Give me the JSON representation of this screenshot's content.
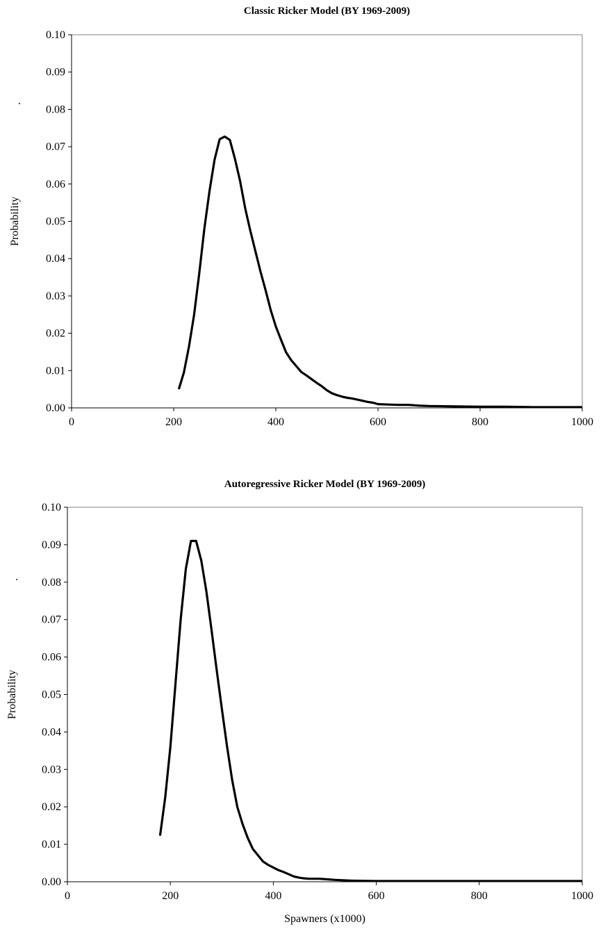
{
  "chart_data": [
    {
      "type": "line",
      "title": "Classic Ricker Model (BY 1969-2009)",
      "xlabel": "",
      "ylabel": "Probability",
      "ylabel_mark": ".",
      "xlim": [
        0,
        1000
      ],
      "ylim": [
        0,
        0.1
      ],
      "xticks": [
        0,
        200,
        400,
        600,
        800,
        1000
      ],
      "yticks": [
        0.0,
        0.01,
        0.02,
        0.03,
        0.04,
        0.05,
        0.06,
        0.07,
        0.08,
        0.09,
        0.1
      ],
      "ytick_labels": [
        "0.00",
        "0.01",
        "0.02",
        "0.03",
        "0.04",
        "0.05",
        "0.06",
        "0.07",
        "0.08",
        "0.09",
        "0.10"
      ],
      "grid": false,
      "legend": "none",
      "line_color": "#000000",
      "series": [
        {
          "x": [
            210,
            220,
            230,
            240,
            250,
            260,
            270,
            280,
            290,
            300,
            310,
            320,
            330,
            340,
            350,
            360,
            370,
            380,
            390,
            400,
            410,
            420,
            430,
            440,
            450,
            460,
            470,
            480,
            490,
            500,
            510,
            520,
            530,
            540,
            550,
            560,
            570,
            580,
            590,
            600,
            620,
            640,
            660,
            680,
            700,
            750,
            800,
            850,
            900,
            950,
            1000
          ],
          "values": [
            0.005,
            0.0095,
            0.0165,
            0.025,
            0.036,
            0.048,
            0.058,
            0.0665,
            0.072,
            0.0727,
            0.0718,
            0.0667,
            0.0608,
            0.0535,
            0.0475,
            0.042,
            0.0365,
            0.0315,
            0.0262,
            0.0218,
            0.0183,
            0.0149,
            0.0128,
            0.0112,
            0.0096,
            0.0087,
            0.0077,
            0.0067,
            0.0058,
            0.0047,
            0.0039,
            0.0034,
            0.003,
            0.0027,
            0.0025,
            0.0022,
            0.0019,
            0.0016,
            0.0014,
            0.001,
            0.0009,
            0.0008,
            0.0008,
            0.0006,
            0.0005,
            0.0004,
            0.0003,
            0.0003,
            0.0002,
            0.0002,
            0.0002
          ]
        }
      ]
    },
    {
      "type": "line",
      "title": "Autoregressive Ricker Model (BY 1969-2009)",
      "xlabel": "Spawners (x1000)",
      "ylabel": "Probability",
      "ylabel_mark": ".",
      "xlim": [
        0,
        1000
      ],
      "ylim": [
        0,
        0.1
      ],
      "xticks": [
        0,
        200,
        400,
        600,
        800,
        1000
      ],
      "yticks": [
        0.0,
        0.01,
        0.02,
        0.03,
        0.04,
        0.05,
        0.06,
        0.07,
        0.08,
        0.09,
        0.1
      ],
      "ytick_labels": [
        "0.00",
        "0.01",
        "0.02",
        "0.03",
        "0.04",
        "0.05",
        "0.06",
        "0.07",
        "0.08",
        "0.09",
        "0.10"
      ],
      "grid": false,
      "legend": "none",
      "line_color": "#000000",
      "series": [
        {
          "x": [
            180,
            190,
            200,
            210,
            220,
            230,
            240,
            250,
            260,
            270,
            280,
            290,
            300,
            310,
            320,
            330,
            340,
            350,
            360,
            370,
            380,
            390,
            400,
            410,
            420,
            430,
            440,
            450,
            460,
            470,
            480,
            490,
            500,
            520,
            550,
            600,
            650,
            700,
            800,
            900,
            1000
          ],
          "values": [
            0.0123,
            0.0225,
            0.036,
            0.053,
            0.07,
            0.0835,
            0.091,
            0.091,
            0.0858,
            0.0775,
            0.0672,
            0.0565,
            0.0462,
            0.0362,
            0.0272,
            0.02,
            0.0155,
            0.0118,
            0.0088,
            0.0071,
            0.0054,
            0.0045,
            0.0038,
            0.0031,
            0.0026,
            0.002,
            0.0014,
            0.0011,
            0.0009,
            0.0008,
            0.0008,
            0.0008,
            0.0007,
            0.0005,
            0.0003,
            0.0002,
            0.0002,
            0.0002,
            0.0002,
            0.0002,
            0.0002
          ]
        }
      ]
    }
  ]
}
